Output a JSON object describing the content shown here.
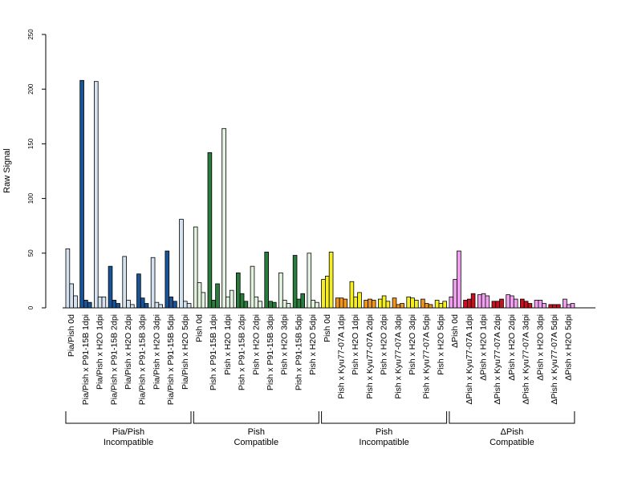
{
  "chart_data": {
    "type": "bar",
    "ylabel": "Raw Signal",
    "ylim": [
      0,
      250
    ],
    "yticks": [
      0,
      50,
      100,
      150,
      200,
      250
    ],
    "grid": false,
    "categories": [
      {
        "label": "Pia/Pish 0d",
        "color": "#d4e2f0",
        "values": [
          54,
          22,
          11
        ]
      },
      {
        "label": "Pia/Pish x P91-15B 1dpi",
        "color": "#1a5496",
        "values": [
          208,
          7,
          5
        ]
      },
      {
        "label": "Pia/Pish x H2O 1dpi",
        "color": "#d4e2f0",
        "values": [
          207,
          10,
          10
        ]
      },
      {
        "label": "Pia/Pish x P91-15B 2dpi",
        "color": "#1a5496",
        "values": [
          38,
          7,
          4
        ]
      },
      {
        "label": "Pia/Pish x H2O 2dpi",
        "color": "#d4e2f0",
        "values": [
          47,
          7,
          3
        ]
      },
      {
        "label": "Pia/Pish x P91-15B 3dpi",
        "color": "#1a5496",
        "values": [
          31,
          9,
          4
        ]
      },
      {
        "label": "Pia/Pish x H2O 3dpi",
        "color": "#d4e2f0",
        "values": [
          46,
          5,
          3
        ]
      },
      {
        "label": "Pia/Pish x P91-15B 5dpi",
        "color": "#1a5496",
        "values": [
          52,
          10,
          6
        ]
      },
      {
        "label": "Pia/Pish x H2O 5dpi",
        "color": "#d4e2f0",
        "values": [
          81,
          6,
          4
        ]
      },
      {
        "label": "Pish 0d",
        "color": "#e2f2de",
        "values": [
          74,
          23,
          14
        ]
      },
      {
        "label": "Pish x P91-15B 1dpi",
        "color": "#2a7c3c",
        "values": [
          142,
          7,
          22
        ]
      },
      {
        "label": "Pish x H2O 1dpi",
        "color": "#e2f2de",
        "values": [
          164,
          10,
          16
        ]
      },
      {
        "label": "Pish x P91-15B 2dpi",
        "color": "#2a7c3c",
        "values": [
          32,
          13,
          6
        ]
      },
      {
        "label": "Pish x H2O 2dpi",
        "color": "#e2f2de",
        "values": [
          38,
          10,
          6
        ]
      },
      {
        "label": "Pish x P91-15B 3dpi",
        "color": "#2a7c3c",
        "values": [
          51,
          6,
          5
        ]
      },
      {
        "label": "Pish x H2O 3dpi",
        "color": "#e2f2de",
        "values": [
          32,
          7,
          4
        ]
      },
      {
        "label": "Pish x P91-15B 5dpi",
        "color": "#2a7c3c",
        "values": [
          48,
          8,
          13
        ]
      },
      {
        "label": "Pish x H2O 5dpi",
        "color": "#e2f2de",
        "values": [
          50,
          7,
          5
        ]
      },
      {
        "label": "Pish 0d",
        "color": "#f5ef22",
        "values": [
          26,
          29,
          51
        ]
      },
      {
        "label": "Pish x Kyu77-07A 1dpi",
        "color": "#f0961c",
        "values": [
          9,
          9,
          8
        ]
      },
      {
        "label": "Pish x H2O 1dpi",
        "color": "#f5ef22",
        "values": [
          24,
          10,
          14
        ]
      },
      {
        "label": "Pish x Kyu77-07A 2dpi",
        "color": "#f0961c",
        "values": [
          7,
          8,
          7
        ]
      },
      {
        "label": "Pish x H2O 2dpi",
        "color": "#f5ef22",
        "values": [
          8,
          11,
          6
        ]
      },
      {
        "label": "Pish x Kyu77-07A 3dpi",
        "color": "#f0961c",
        "values": [
          9,
          3,
          4
        ]
      },
      {
        "label": "Pish x H2O 3dpi",
        "color": "#f5ef22",
        "values": [
          10,
          9,
          7
        ]
      },
      {
        "label": "Pish x Kyu77-07A 5dpi",
        "color": "#f0961c",
        "values": [
          8,
          4,
          3
        ]
      },
      {
        "label": "Pish x H2O 5dpi",
        "color": "#f5ef22",
        "values": [
          7,
          4,
          6
        ]
      },
      {
        "label": "ΔPish 0d",
        "color": "#f0a0ee",
        "values": [
          10,
          26,
          52
        ]
      },
      {
        "label": "ΔPish x Kyu77-07A 1dpi",
        "color": "#c8101e",
        "values": [
          7,
          8,
          13
        ]
      },
      {
        "label": "ΔPish x H2O 1dpi",
        "color": "#f0a0ee",
        "values": [
          12,
          13,
          11
        ]
      },
      {
        "label": "ΔPish x Kyu77-07A 2dpi",
        "color": "#c8101e",
        "values": [
          6,
          6,
          8
        ]
      },
      {
        "label": "ΔPish x H2O 2dpi",
        "color": "#f0a0ee",
        "values": [
          12,
          11,
          8
        ]
      },
      {
        "label": "ΔPish x Kyu77-07A 3dpi",
        "color": "#c8101e",
        "values": [
          8,
          6,
          4
        ]
      },
      {
        "label": "ΔPish x H2O 3dpi",
        "color": "#f0a0ee",
        "values": [
          7,
          7,
          4
        ]
      },
      {
        "label": "ΔPish x Kyu77-07A 5dpi",
        "color": "#c8101e",
        "values": [
          3,
          3,
          3
        ]
      },
      {
        "label": "ΔPish x H2O 5dpi",
        "color": "#f0a0ee",
        "values": [
          8,
          3,
          4
        ]
      }
    ],
    "groups": [
      {
        "line1": "Pia/Pish",
        "line2": "Incompatible",
        "first": 0,
        "last": 8
      },
      {
        "line1": "Pish",
        "line2": "Compatible",
        "first": 9,
        "last": 17
      },
      {
        "line1": "Pish",
        "line2": "Incompatible",
        "first": 18,
        "last": 26
      },
      {
        "line1": "ΔPish",
        "line2": "Compatible",
        "first": 27,
        "last": 35
      }
    ]
  }
}
